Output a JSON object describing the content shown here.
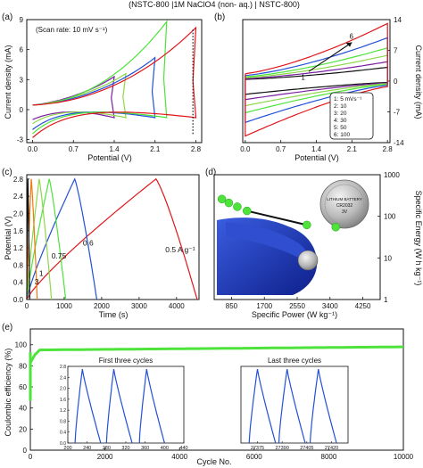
{
  "header": "(NSTC-800 |1M NaClO4 (non- aq.) | NSTC-800)",
  "colors": {
    "green": "#4ee33b",
    "red": "#e0161b",
    "blue": "#2350d8",
    "purple": "#7a1fa2",
    "orange": "#f07a10",
    "lime": "#8fd74a",
    "black": "#111111"
  },
  "chart_data": [
    {
      "panel": "(a)",
      "type": "line",
      "annotation": "(Scan rate: 10 mV s⁻¹)",
      "xlabel": "Potential (V)",
      "ylabel": "Current density (mA)",
      "xlim": [
        -0.1,
        2.9
      ],
      "ylim": [
        -3.3,
        9
      ],
      "xticks": [
        "0.0",
        "0.7",
        "1.4",
        "2.1",
        "2.8"
      ],
      "yticks": [
        "-3",
        "0",
        "3",
        "6",
        "9"
      ],
      "series": [
        {
          "color": "purple",
          "vmax": 1.4,
          "imax": 3.3,
          "imin": -1.0
        },
        {
          "color": "lime",
          "vmax": 1.6,
          "imax": 3.6,
          "imin": -1.4
        },
        {
          "color": "blue",
          "vmax": 2.1,
          "imax": 5.2,
          "imin": -2.0
        },
        {
          "color": "green",
          "vmax": 2.3,
          "imax": 8.8,
          "imin": -2.4
        },
        {
          "color": "red",
          "vmax": 2.8,
          "imax": 8.2,
          "imin": -2.8
        }
      ]
    },
    {
      "panel": "(b)",
      "type": "line",
      "xlabel": "Potential (V)",
      "ylabel": "Current density (mA)",
      "xlim": [
        -0.05,
        2.85
      ],
      "ylim": [
        -14,
        14
      ],
      "xticks": [
        "0.0",
        "0.7",
        "1.4",
        "2.1",
        "2.8"
      ],
      "yticks": [
        "-14",
        "-7",
        "0",
        "7",
        "14"
      ],
      "arrow_labels": [
        "1",
        "6"
      ],
      "legend": [
        "1:   5 mVs⁻¹",
        "2:  10",
        "3:  20",
        "4:  30",
        "5:  50",
        "6:  100"
      ],
      "series": [
        {
          "color": "black",
          "rate": 5,
          "amp": 3.0
        },
        {
          "color": "purple",
          "rate": 10,
          "amp": 4.2
        },
        {
          "color": "lime",
          "rate": 20,
          "amp": 5.6
        },
        {
          "color": "green",
          "rate": 30,
          "amp": 7.2
        },
        {
          "color": "blue",
          "rate": 50,
          "amp": 9.4
        },
        {
          "color": "red",
          "rate": 100,
          "amp": 12.5
        }
      ]
    },
    {
      "panel": "(c)",
      "type": "line",
      "xlabel": "Time (s)",
      "ylabel": "Potential (V)",
      "xlim": [
        0,
        4600
      ],
      "ylim": [
        0,
        2.9
      ],
      "xticks": [
        "0",
        "1000",
        "2000",
        "3000",
        "4000"
      ],
      "yticks": [
        "0.0",
        "0.4",
        "0.8",
        "1.2",
        "1.6",
        "2.0",
        "2.4",
        "2.8"
      ],
      "series": [
        {
          "label": "0.5 A g⁻¹",
          "color": "red",
          "charge": 3450,
          "discharge": 4550
        },
        {
          "label": "0.6",
          "color": "blue",
          "charge": 1280,
          "discharge": 1870
        },
        {
          "label": "0.75",
          "color": "green",
          "charge": 600,
          "discharge": 1040
        },
        {
          "label": "1",
          "color": "lime",
          "charge": 330,
          "discharge": 660
        },
        {
          "label": "3",
          "color": "orange",
          "charge": 120,
          "discharge": 280
        },
        {
          "label": "",
          "color": "black",
          "charge": 30,
          "discharge": 80
        }
      ]
    },
    {
      "panel": "(d)",
      "type": "scatter",
      "xlabel": "Specific Power (W kg⁻¹)",
      "ylabel": "Specific Energy (W h kg⁻¹)",
      "xlim": [
        400,
        4700
      ],
      "ylim_log": [
        1,
        1000
      ],
      "xticks": [
        "850",
        "1700",
        "2550",
        "3400",
        "4250"
      ],
      "yticks": [
        "1",
        "10",
        "100",
        "1000"
      ],
      "points": [
        {
          "x": 600,
          "y": 260,
          "color": "green"
        },
        {
          "x": 780,
          "y": 210,
          "color": "green"
        },
        {
          "x": 1000,
          "y": 170,
          "color": "green"
        },
        {
          "x": 1250,
          "y": 135,
          "color": "green"
        },
        {
          "x": 2800,
          "y": 62,
          "color": "green"
        },
        {
          "x": 3550,
          "y": 55,
          "color": "green"
        }
      ],
      "battery_lines": [
        "LITHIUM BATTERY",
        "CR2032",
        "3V"
      ]
    },
    {
      "panel": "(e)",
      "type": "line",
      "xlabel": "Cycle No.",
      "ylabel": "Coulombic efficiency (%)",
      "xlim": [
        0,
        10000
      ],
      "ylim": [
        0,
        115
      ],
      "xticks": [
        "0",
        "2000",
        "4000",
        "6000",
        "8000",
        "10000"
      ],
      "yticks": [
        "0",
        "20",
        "40",
        "60",
        "80",
        "100"
      ],
      "series": [
        {
          "name": "",
          "color": "green",
          "start": 47,
          "plateau": 95,
          "end": 98
        }
      ],
      "insets": [
        {
          "title": "First three cycles",
          "xticks": [
            "200",
            "240",
            "280",
            "320",
            "360",
            "400",
            "440"
          ],
          "yticks": [
            "0.0",
            "0.4",
            "0.8",
            "1.2",
            "1.6",
            "2.0",
            "2.4",
            "2.8"
          ],
          "xlim": [
            200,
            440
          ],
          "ylim": [
            0,
            2.8
          ],
          "cycles": [
            [
              215,
              230,
              268
            ],
            [
              280,
              295,
              333
            ],
            [
              348,
              363,
              400
            ]
          ]
        },
        {
          "title": "Last three cycles",
          "xticks": [
            "27375",
            "27390",
            "27405",
            "27420"
          ],
          "yticks": [],
          "xlim": [
            27365,
            27430
          ],
          "ylim": [
            0,
            2.8
          ],
          "cycles": [
            [
              27370,
              27375,
              27386
            ],
            [
              27388,
              27393,
              27404
            ],
            [
              27407,
              27412,
              27423
            ]
          ]
        }
      ]
    }
  ]
}
